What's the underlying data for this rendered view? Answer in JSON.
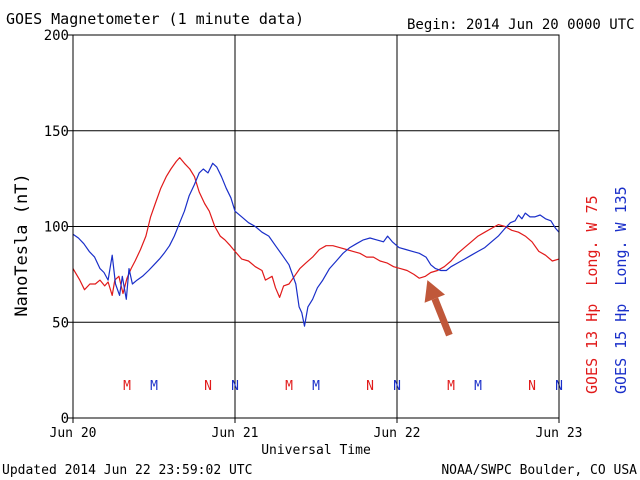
{
  "chart_data": {
    "type": "line",
    "title": "GOES Magnetometer (1 minute data)",
    "begin_label": "Begin:",
    "begin_value": "2014 Jun 20 0000 UTC",
    "ylabel": "NanoTesla (nT)",
    "xlabel": "Universal Time",
    "ylim": [
      0,
      200
    ],
    "yticks": [
      0,
      50,
      100,
      150,
      200
    ],
    "xlim": [
      0,
      72
    ],
    "xticks": [
      {
        "h": 0,
        "label": "Jun 20"
      },
      {
        "h": 24,
        "label": "Jun 21"
      },
      {
        "h": 48,
        "label": "Jun 22"
      },
      {
        "h": 72,
        "label": "Jun 23"
      }
    ],
    "grid": true,
    "series": [
      {
        "name": "GOES 13 Hp  Long. W 75",
        "color": "#e11a1a",
        "points": [
          [
            0,
            78
          ],
          [
            1,
            72
          ],
          [
            1.7,
            67
          ],
          [
            2.5,
            70
          ],
          [
            3.3,
            70
          ],
          [
            4,
            72
          ],
          [
            4.7,
            69
          ],
          [
            5.2,
            71
          ],
          [
            5.8,
            64
          ],
          [
            6.2,
            72
          ],
          [
            6.8,
            74
          ],
          [
            7.4,
            65
          ],
          [
            8,
            73
          ],
          [
            8.6,
            78
          ],
          [
            9.2,
            82
          ],
          [
            10,
            88
          ],
          [
            10.8,
            95
          ],
          [
            11.5,
            105
          ],
          [
            12.2,
            112
          ],
          [
            13,
            120
          ],
          [
            13.8,
            126
          ],
          [
            14.5,
            130
          ],
          [
            15.3,
            134
          ],
          [
            15.8,
            136
          ],
          [
            16.5,
            133
          ],
          [
            17.3,
            130
          ],
          [
            18,
            126
          ],
          [
            18.7,
            118
          ],
          [
            19.5,
            112
          ],
          [
            20.2,
            108
          ],
          [
            21,
            100
          ],
          [
            21.8,
            95
          ],
          [
            22.5,
            93
          ],
          [
            23.3,
            90
          ],
          [
            24,
            87
          ],
          [
            25,
            83
          ],
          [
            26,
            82
          ],
          [
            27,
            79
          ],
          [
            28,
            77
          ],
          [
            28.5,
            72
          ],
          [
            29.5,
            74
          ],
          [
            30,
            68
          ],
          [
            30.6,
            63
          ],
          [
            31.2,
            69
          ],
          [
            32,
            70
          ],
          [
            32.8,
            74
          ],
          [
            33.6,
            78
          ],
          [
            34.5,
            81
          ],
          [
            35.5,
            84
          ],
          [
            36.5,
            88
          ],
          [
            37.5,
            90
          ],
          [
            38.5,
            90
          ],
          [
            39.5,
            89
          ],
          [
            40.5,
            88
          ],
          [
            41.5,
            87
          ],
          [
            42.5,
            86
          ],
          [
            43.5,
            84
          ],
          [
            44.5,
            84
          ],
          [
            45.5,
            82
          ],
          [
            46.5,
            81
          ],
          [
            47.5,
            79
          ],
          [
            48.5,
            78
          ],
          [
            49.5,
            77
          ],
          [
            50.5,
            75
          ],
          [
            51.3,
            73
          ],
          [
            52.2,
            74
          ],
          [
            53,
            76
          ],
          [
            54,
            77
          ],
          [
            55,
            79
          ],
          [
            56,
            82
          ],
          [
            57,
            86
          ],
          [
            58,
            89
          ],
          [
            59,
            92
          ],
          [
            60,
            95
          ],
          [
            61,
            97
          ],
          [
            62,
            99
          ],
          [
            63,
            101
          ],
          [
            64,
            100
          ],
          [
            65,
            98
          ],
          [
            66,
            97
          ],
          [
            67,
            95
          ],
          [
            68,
            92
          ],
          [
            69,
            87
          ],
          [
            70,
            85
          ],
          [
            71,
            82
          ],
          [
            72,
            83
          ]
        ]
      },
      {
        "name": "GOES 15 Hp  Long. W 135",
        "color": "#1a2fc9",
        "points": [
          [
            0,
            96
          ],
          [
            0.8,
            94
          ],
          [
            1.6,
            91
          ],
          [
            2.4,
            87
          ],
          [
            3.2,
            84
          ],
          [
            4,
            78
          ],
          [
            4.6,
            76
          ],
          [
            5.2,
            72
          ],
          [
            5.8,
            85
          ],
          [
            6.3,
            70
          ],
          [
            6.9,
            64
          ],
          [
            7.3,
            74
          ],
          [
            7.9,
            62
          ],
          [
            8.3,
            78
          ],
          [
            8.8,
            70
          ],
          [
            9.5,
            72
          ],
          [
            10.3,
            74
          ],
          [
            11.2,
            77
          ],
          [
            12,
            80
          ],
          [
            12.8,
            83
          ],
          [
            13.5,
            86
          ],
          [
            14.3,
            90
          ],
          [
            15,
            95
          ],
          [
            15.8,
            102
          ],
          [
            16.5,
            108
          ],
          [
            17.2,
            116
          ],
          [
            18,
            122
          ],
          [
            18.7,
            128
          ],
          [
            19.3,
            130
          ],
          [
            20,
            128
          ],
          [
            20.7,
            133
          ],
          [
            21.3,
            131
          ],
          [
            22,
            126
          ],
          [
            22.7,
            120
          ],
          [
            23.4,
            115
          ],
          [
            24,
            108
          ],
          [
            25,
            105
          ],
          [
            26,
            102
          ],
          [
            27,
            100
          ],
          [
            28,
            97
          ],
          [
            29,
            95
          ],
          [
            30,
            90
          ],
          [
            31,
            85
          ],
          [
            32,
            80
          ],
          [
            33,
            70
          ],
          [
            33.5,
            58
          ],
          [
            33.9,
            55
          ],
          [
            34.3,
            48
          ],
          [
            34.8,
            58
          ],
          [
            35.5,
            62
          ],
          [
            36.2,
            68
          ],
          [
            37,
            72
          ],
          [
            38,
            78
          ],
          [
            39,
            82
          ],
          [
            40,
            86
          ],
          [
            41,
            89
          ],
          [
            42,
            91
          ],
          [
            43,
            93
          ],
          [
            44,
            94
          ],
          [
            45,
            93
          ],
          [
            46,
            92
          ],
          [
            46.6,
            95
          ],
          [
            47.3,
            92
          ],
          [
            48.3,
            89
          ],
          [
            49.3,
            88
          ],
          [
            50.3,
            87
          ],
          [
            51.3,
            86
          ],
          [
            52.3,
            84
          ],
          [
            53,
            80
          ],
          [
            53.7,
            78
          ],
          [
            54.5,
            77
          ],
          [
            55.3,
            77
          ],
          [
            56,
            79
          ],
          [
            57,
            81
          ],
          [
            58,
            83
          ],
          [
            59,
            85
          ],
          [
            60,
            87
          ],
          [
            61,
            89
          ],
          [
            62,
            92
          ],
          [
            63,
            95
          ],
          [
            64,
            99
          ],
          [
            64.8,
            102
          ],
          [
            65.5,
            103
          ],
          [
            66,
            106
          ],
          [
            66.5,
            104
          ],
          [
            67,
            107
          ],
          [
            67.7,
            105
          ],
          [
            68.4,
            105
          ],
          [
            69.2,
            106
          ],
          [
            70,
            104
          ],
          [
            70.8,
            103
          ],
          [
            71.5,
            99
          ],
          [
            72,
            97
          ]
        ]
      }
    ],
    "noon_markers": [
      {
        "label": "M",
        "h": 8,
        "color": "#e11a1a"
      },
      {
        "label": "M",
        "h": 12,
        "color": "#1a2fc9"
      },
      {
        "label": "N",
        "h": 20,
        "color": "#e11a1a"
      },
      {
        "label": "N",
        "h": 24,
        "color": "#1a2fc9"
      },
      {
        "label": "M",
        "h": 32,
        "color": "#e11a1a"
      },
      {
        "label": "M",
        "h": 36,
        "color": "#1a2fc9"
      },
      {
        "label": "N",
        "h": 44,
        "color": "#e11a1a"
      },
      {
        "label": "N",
        "h": 48,
        "color": "#1a2fc9"
      },
      {
        "label": "M",
        "h": 56,
        "color": "#e11a1a"
      },
      {
        "label": "M",
        "h": 60,
        "color": "#1a2fc9"
      },
      {
        "label": "N",
        "h": 68,
        "color": "#e11a1a"
      },
      {
        "label": "N",
        "h": 72,
        "color": "#1a2fc9"
      }
    ],
    "annotation": {
      "type": "arrow",
      "color": "#c0583a",
      "points_to": {
        "h": 52.5,
        "nT": 72
      }
    }
  },
  "footer": {
    "updated": "Updated 2014 Jun 22 23:59:02 UTC",
    "source": "NOAA/SWPC Boulder, CO USA"
  }
}
